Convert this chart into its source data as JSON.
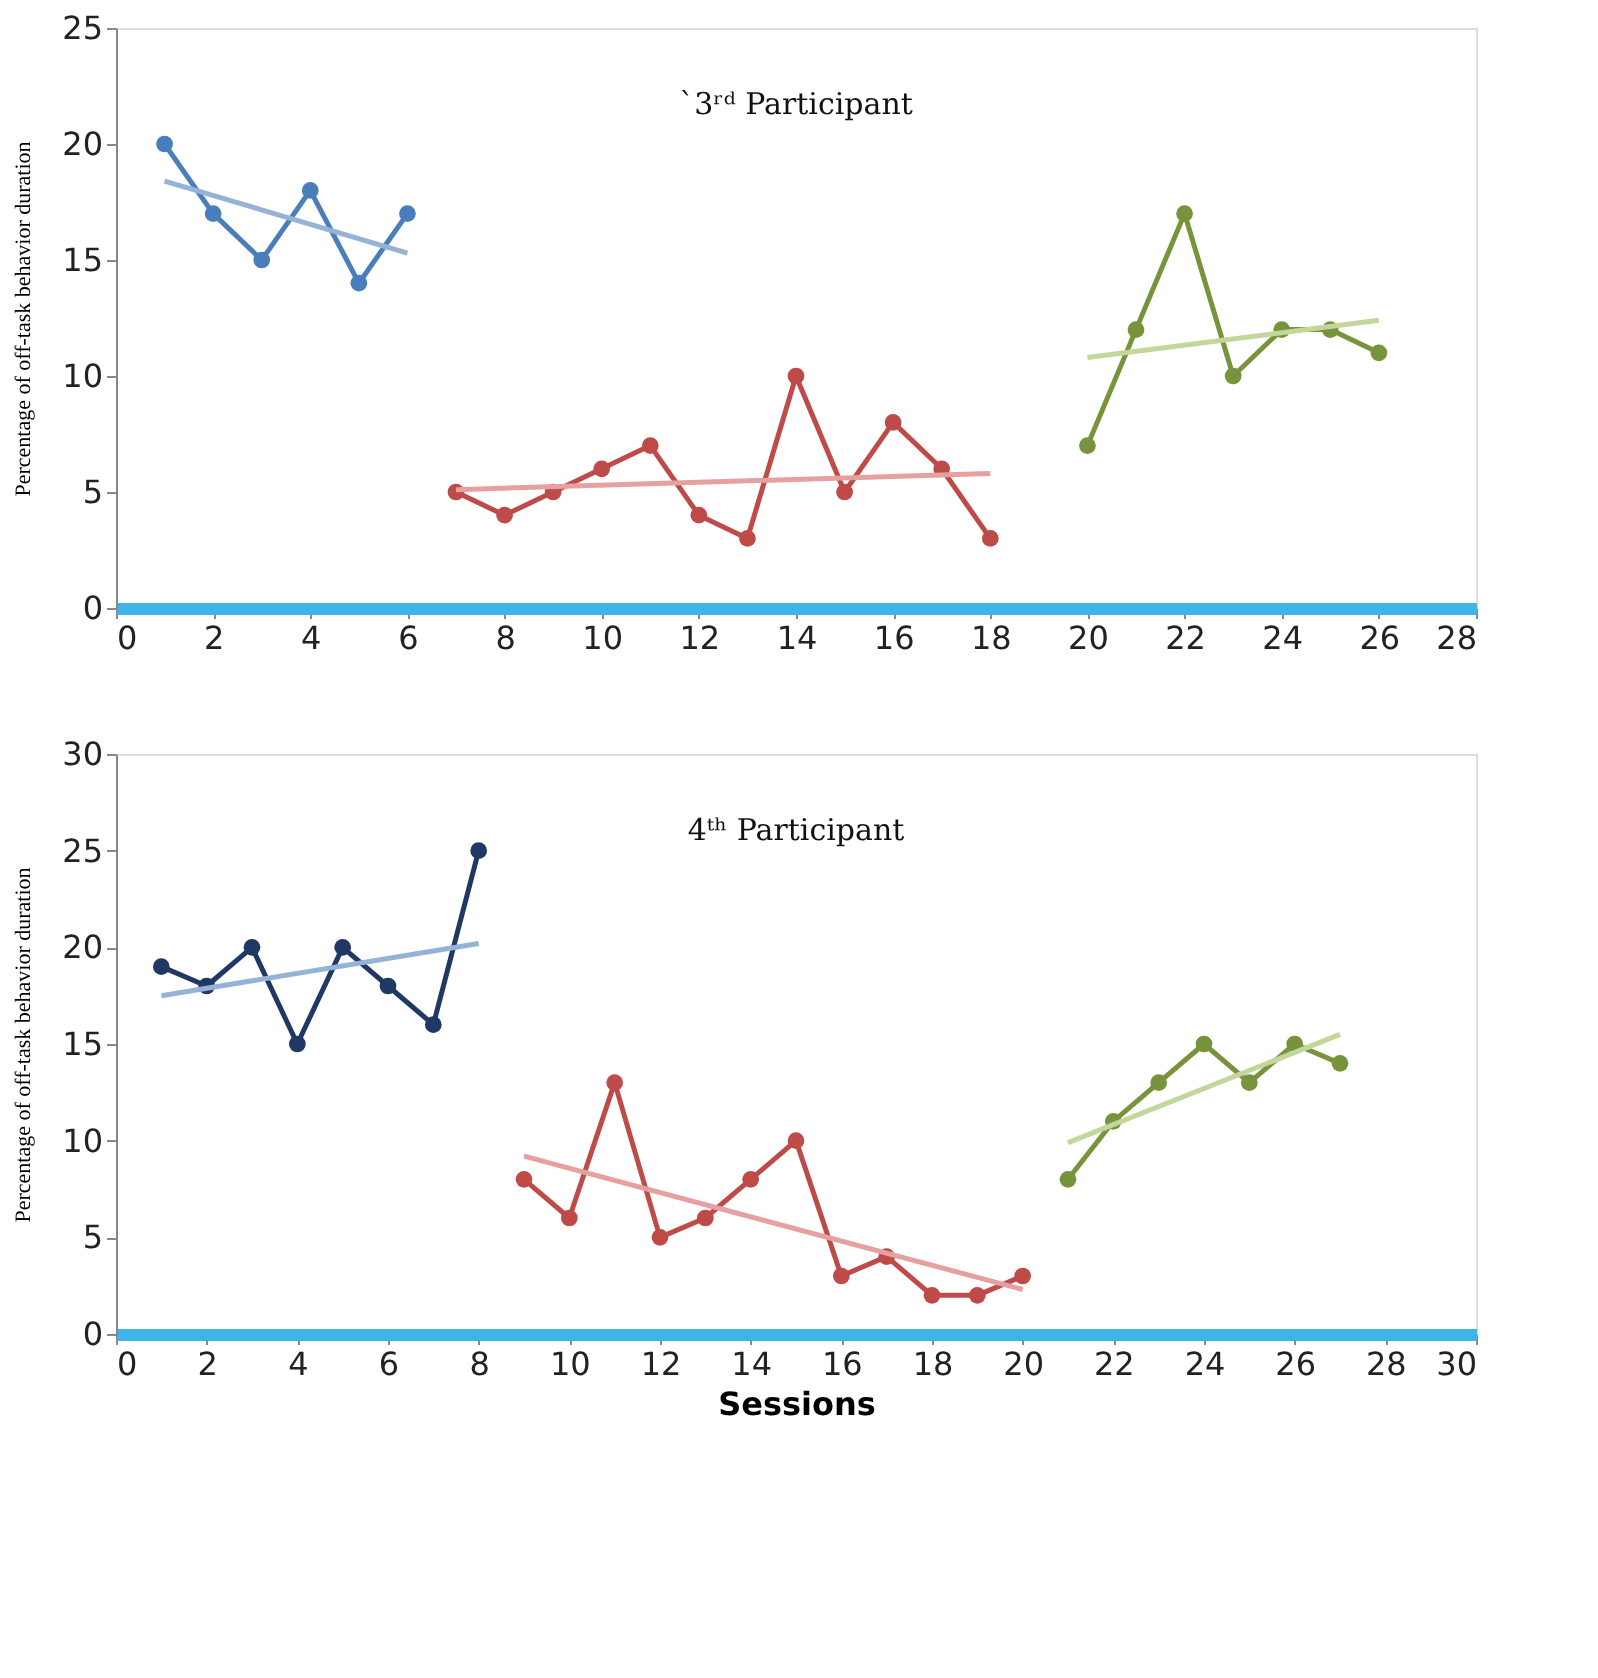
{
  "chart_data": [
    {
      "type": "line",
      "title": "`3ʳᵈ Participant",
      "ylabel": "Percentage of off-task behavior duration",
      "xlim": [
        0,
        28
      ],
      "xticks": [
        0,
        2,
        4,
        6,
        8,
        10,
        12,
        14,
        16,
        18,
        20,
        22,
        24,
        26,
        28
      ],
      "ylim": [
        0,
        25
      ],
      "yticks": [
        0,
        5,
        10,
        15,
        20,
        25
      ],
      "grid": false,
      "marker": "circle",
      "line_style": "solid",
      "series": [
        {
          "color": "#4a7ebb",
          "x": [
            1,
            2,
            3,
            4,
            5,
            6
          ],
          "values": [
            20,
            17,
            15,
            18,
            14,
            17
          ]
        },
        {
          "type": "line",
          "marker": "none",
          "color": "#95b3d7",
          "x": [
            1,
            6
          ],
          "values": [
            18.4,
            15.3
          ]
        },
        {
          "color": "#be4b48",
          "x": [
            7,
            8,
            9,
            10,
            11,
            12,
            13,
            14,
            15,
            16,
            17,
            18
          ],
          "values": [
            5,
            4,
            5,
            6,
            7,
            4,
            3,
            10,
            5,
            8,
            6,
            3
          ]
        },
        {
          "type": "line",
          "marker": "none",
          "color": "#e6a0a0",
          "x": [
            7,
            18
          ],
          "values": [
            5.1,
            5.8
          ]
        },
        {
          "color": "#77933c",
          "x": [
            20,
            21,
            22,
            23,
            24,
            25,
            26
          ],
          "values": [
            7,
            12,
            17,
            10,
            12,
            12,
            11
          ]
        },
        {
          "type": "line",
          "marker": "none",
          "color": "#c3d69b",
          "x": [
            20,
            26
          ],
          "values": [
            10.8,
            12.4
          ]
        }
      ]
    },
    {
      "type": "line",
      "title": "4ᵗʰ Participant",
      "xlabel": "Sessions",
      "ylabel": "Percentage of off-task behavior duration",
      "xlim": [
        0,
        30
      ],
      "xticks": [
        0,
        2,
        4,
        6,
        8,
        10,
        12,
        14,
        16,
        18,
        20,
        22,
        24,
        26,
        28,
        30
      ],
      "ylim": [
        0,
        30
      ],
      "yticks": [
        0,
        5,
        10,
        15,
        20,
        25,
        30
      ],
      "grid": false,
      "marker": "circle",
      "line_style": "solid",
      "series": [
        {
          "color": "#1f3864",
          "x": [
            1,
            2,
            3,
            4,
            5,
            6,
            7,
            8
          ],
          "values": [
            19,
            18,
            20,
            15,
            20,
            18,
            16,
            25
          ]
        },
        {
          "type": "line",
          "marker": "none",
          "color": "#95b3d7",
          "x": [
            1,
            8
          ],
          "values": [
            17.5,
            20.2
          ]
        },
        {
          "color": "#be4b48",
          "x": [
            9,
            10,
            11,
            12,
            13,
            14,
            15,
            16,
            17,
            18,
            19,
            20
          ],
          "values": [
            8,
            6,
            13,
            5,
            6,
            8,
            10,
            3,
            4,
            2,
            2,
            3
          ]
        },
        {
          "type": "line",
          "marker": "none",
          "color": "#e6a0a0",
          "x": [
            9,
            20
          ],
          "values": [
            9.2,
            2.3
          ]
        },
        {
          "color": "#77933c",
          "x": [
            21,
            22,
            23,
            24,
            25,
            26,
            27
          ],
          "values": [
            8,
            11,
            13,
            15,
            13,
            15,
            14
          ]
        },
        {
          "type": "line",
          "marker": "none",
          "color": "#c3d69b",
          "x": [
            21,
            27
          ],
          "values": [
            9.9,
            15.5
          ]
        }
      ]
    }
  ]
}
